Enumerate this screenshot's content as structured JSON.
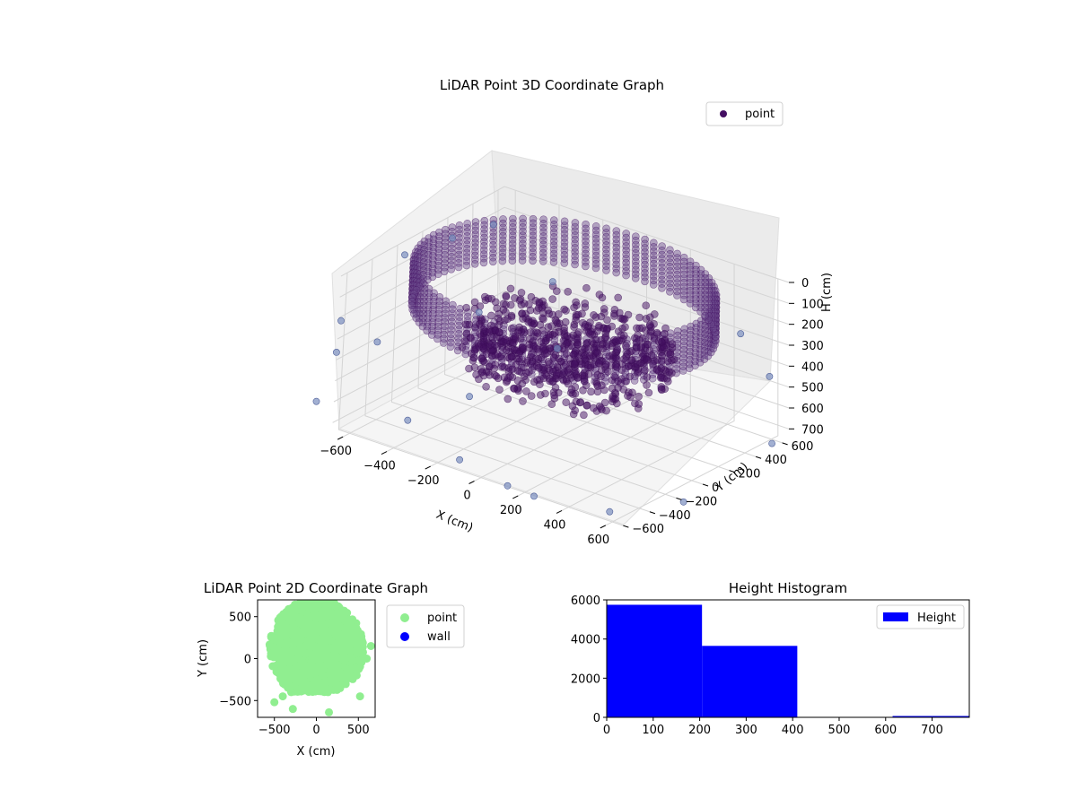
{
  "chart_data": [
    {
      "type": "scatter",
      "projection": "3d",
      "title": "LiDAR Point 3D Coordinate Graph",
      "xlabel": "X (cm)",
      "ylabel": "Y (cm)",
      "zlabel": "H (cm)",
      "xlim": [
        -650,
        650
      ],
      "ylim": [
        -650,
        650
      ],
      "zlim": [
        0,
        750
      ],
      "z_axis_inverted": true,
      "xticks": [
        "−600",
        "−400",
        "−200",
        "0",
        "200",
        "400",
        "600"
      ],
      "yticks": [
        "−600",
        "−400",
        "−200",
        "0",
        "200",
        "400",
        "600"
      ],
      "zticks": [
        "0",
        "100",
        "200",
        "300",
        "400",
        "500",
        "600",
        "700"
      ],
      "grid": true,
      "legend": {
        "position": "top-right",
        "entries": [
          {
            "label": "point",
            "color": "#440f62"
          }
        ]
      },
      "series": [
        {
          "name": "point",
          "color": "#440f62",
          "structure": "cylindrical wall of points around origin, radius ~600 cm, heights 0–200 cm, plus dense floor cluster and sparse outliers",
          "ring_radius": 600,
          "ring_heights": [
            0,
            200
          ],
          "outliers": [
            [
              -900,
              300,
              300
            ],
            [
              -800,
              500,
              250
            ],
            [
              -700,
              650,
              200
            ],
            [
              -500,
              200,
              400
            ],
            [
              -400,
              600,
              350
            ],
            [
              -950,
              -100,
              500
            ],
            [
              -850,
              -300,
              550
            ],
            [
              -700,
              -700,
              600
            ],
            [
              -400,
              -500,
              650
            ],
            [
              -100,
              -600,
              700
            ],
            [
              150,
              -650,
              720
            ],
            [
              -900,
              100,
              650
            ],
            [
              300,
              -700,
              700
            ],
            [
              800,
              -400,
              650
            ],
            [
              700,
              -800,
              600
            ],
            [
              900,
              100,
              500
            ],
            [
              650,
              500,
              400
            ],
            [
              400,
              700,
              350
            ],
            [
              -200,
              300,
              500
            ],
            [
              -300,
              -200,
              600
            ]
          ]
        }
      ]
    },
    {
      "type": "scatter",
      "title": "LiDAR Point 2D Coordinate Graph",
      "xlabel": "X (cm)",
      "ylabel": "Y (cm)",
      "xlim": [
        -700,
        700
      ],
      "ylim": [
        -700,
        700
      ],
      "xticks": [
        "−500",
        "0",
        "500"
      ],
      "yticks": [
        "−500",
        "0",
        "500"
      ],
      "legend": {
        "position": "outside-right",
        "entries": [
          {
            "label": "point",
            "color": "#90ee90"
          },
          {
            "label": "wall",
            "color": "#0000ff"
          }
        ]
      },
      "series": [
        {
          "name": "point",
          "color": "#90ee90",
          "structure": "dense filled disk; top edge clipped at y≈680, bottom extends to ≈-400",
          "outliers": [
            [
              -500,
              -520
            ],
            [
              -400,
              -450
            ],
            [
              -300,
              -400
            ],
            [
              -280,
              -600
            ],
            [
              150,
              -640
            ],
            [
              480,
              -200
            ],
            [
              520,
              -450
            ],
            [
              600,
              0
            ],
            [
              650,
              150
            ]
          ]
        },
        {
          "name": "wall",
          "color": "#0000ff",
          "values": []
        }
      ]
    },
    {
      "type": "bar",
      "subtype": "histogram",
      "title": "Height Histogram",
      "xlabel": "",
      "ylabel": "",
      "xlim": [
        0,
        780
      ],
      "ylim": [
        0,
        6000
      ],
      "xticks": [
        "0",
        "100",
        "200",
        "300",
        "400",
        "500",
        "600",
        "700"
      ],
      "yticks": [
        "0",
        "2000",
        "4000",
        "6000"
      ],
      "legend": {
        "position": "top-right",
        "entries": [
          {
            "label": "Height",
            "color": "#0000ff"
          }
        ]
      },
      "bins": [
        {
          "from": 0,
          "to": 205,
          "count": 5750
        },
        {
          "from": 205,
          "to": 410,
          "count": 3650
        },
        {
          "from": 410,
          "to": 615,
          "count": 0
        },
        {
          "from": 615,
          "to": 780,
          "count": 60
        }
      ]
    }
  ]
}
